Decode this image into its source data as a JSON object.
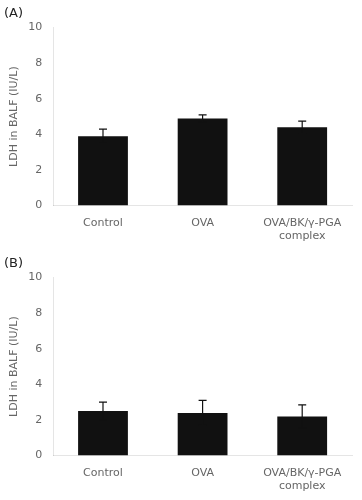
{
  "chart_data": [
    {
      "type": "bar",
      "title": "(A)",
      "categories": [
        "Control",
        "OVA",
        "OVA/BK/γ-PGA\ncomplex"
      ],
      "values": [
        3.9,
        4.9,
        4.4
      ],
      "errors": [
        0.4,
        0.2,
        0.35
      ],
      "ylabel": "LDH in BALF (IU/L)",
      "ylim": [
        0,
        10
      ],
      "yticks": [
        0,
        2,
        4,
        6,
        8,
        10
      ],
      "color": "#111111",
      "grid": false
    },
    {
      "type": "bar",
      "title": "(B)",
      "categories": [
        "Control",
        "OVA",
        "OVA/BK/γ-PGA\ncomplex"
      ],
      "values": [
        2.5,
        2.4,
        2.2
      ],
      "errors": [
        0.5,
        0.7,
        0.65
      ],
      "ylabel": "LDH in BALF (IU/L)",
      "ylim": [
        0,
        10
      ],
      "yticks": [
        0,
        2,
        4,
        6,
        8,
        10
      ],
      "color": "#111111",
      "grid": false
    }
  ]
}
